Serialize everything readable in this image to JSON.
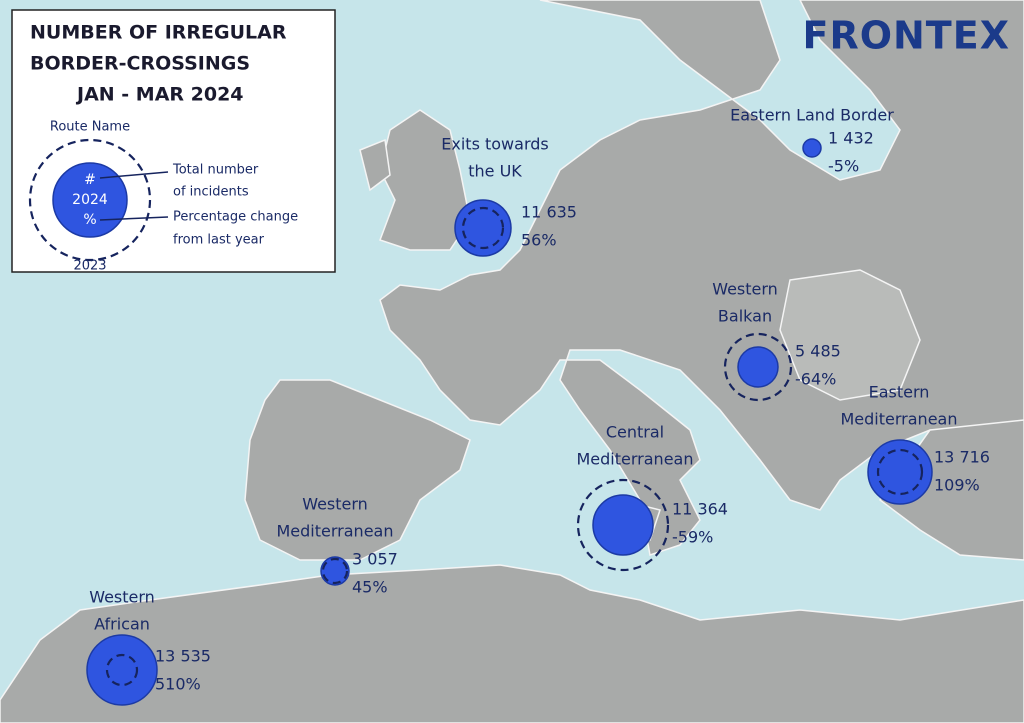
{
  "header": {
    "title_lines": [
      "NUMBER OF IRREGULAR",
      "BORDER-CROSSINGS",
      "JAN - MAR 2024"
    ],
    "logo": "FRONTEX"
  },
  "legend": {
    "route_name": "Route Name",
    "count_symbol": "#",
    "year_current": "2024",
    "percent_symbol": "%",
    "year_previous": "2023",
    "descriptions": [
      "Total number",
      "of incidents",
      "Percentage change",
      "from last year"
    ]
  },
  "routes": [
    {
      "name_lines": [
        "Exits towards",
        "the UK"
      ],
      "count": "11 635",
      "change": "56%"
    },
    {
      "name_lines": [
        "Eastern Land Border"
      ],
      "count": "1 432",
      "change": "-5%"
    },
    {
      "name_lines": [
        "Western",
        "Balkan"
      ],
      "count": "5 485",
      "change": "-64%"
    },
    {
      "name_lines": [
        "Eastern",
        "Mediterranean"
      ],
      "count": "13 716",
      "change": "109%"
    },
    {
      "name_lines": [
        "Central",
        "Mediterranean"
      ],
      "count": "11 364",
      "change": "-59%"
    },
    {
      "name_lines": [
        "Western",
        "Mediterranean"
      ],
      "count": "3 057",
      "change": "45%"
    },
    {
      "name_lines": [
        "Western",
        "African"
      ],
      "count": "13 535",
      "change": "510%"
    }
  ]
}
